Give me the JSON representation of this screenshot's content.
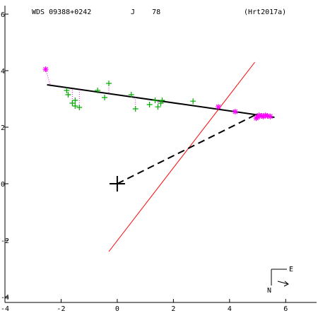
{
  "header": {
    "left": "WDS 09388+0242",
    "center": "J    78",
    "right": "(Hrt2017a)"
  },
  "chart_data": {
    "type": "scatter",
    "xlim": [
      -4,
      7.1
    ],
    "ylim": [
      -4.2,
      6.3
    ],
    "x_ticks": [
      -4,
      -2,
      0,
      2,
      4,
      6
    ],
    "y_ticks": [
      -4,
      -2,
      0,
      2,
      4,
      6
    ],
    "grid": false,
    "colors": {
      "axes": "#000000",
      "green_points": "#00aa00",
      "magenta_points": "#ff00ff",
      "red_line": "#ff0000",
      "fit_line": "#000000",
      "dashed_line": "#000000"
    },
    "series": [
      {
        "marker": "plus",
        "color": "#00aa00",
        "points": [
          [
            -1.8,
            3.3
          ],
          [
            -1.75,
            3.15
          ],
          [
            -1.6,
            2.85
          ],
          [
            -1.5,
            2.95
          ],
          [
            -1.5,
            2.75
          ],
          [
            -1.35,
            2.7
          ],
          [
            -0.7,
            3.3
          ],
          [
            -0.45,
            3.05
          ],
          [
            -0.3,
            3.55
          ],
          [
            0.5,
            3.15
          ],
          [
            0.65,
            2.65
          ],
          [
            1.15,
            2.8
          ],
          [
            1.35,
            2.95
          ],
          [
            1.45,
            2.72
          ],
          [
            1.55,
            2.85
          ],
          [
            1.6,
            2.95
          ],
          [
            2.7,
            2.92
          ]
        ]
      },
      {
        "marker": "asterisk",
        "color": "#ff00ff",
        "points": [
          [
            -2.55,
            4.05
          ],
          [
            3.6,
            2.72
          ],
          [
            4.2,
            2.55
          ],
          [
            4.95,
            2.32
          ],
          [
            5.0,
            2.36
          ],
          [
            5.05,
            2.42
          ],
          [
            5.15,
            2.4
          ],
          [
            5.2,
            2.38
          ],
          [
            5.28,
            2.42
          ],
          [
            5.35,
            2.4
          ],
          [
            5.45,
            2.38
          ]
        ]
      }
    ],
    "lines": {
      "fit": [
        [
          -2.5,
          3.5
        ],
        [
          5.6,
          2.35
        ]
      ],
      "red": [
        [
          -0.3,
          -2.4
        ],
        [
          4.9,
          4.3
        ]
      ],
      "dashed": [
        [
          0.0,
          0.0
        ],
        [
          4.95,
          2.45
        ]
      ],
      "dotted_residuals": [
        [
          [
            -2.55,
            4.05
          ],
          [
            -2.38,
            3.48
          ]
        ],
        [
          [
            -1.8,
            3.3
          ],
          [
            -1.8,
            3.4
          ]
        ],
        [
          [
            -1.6,
            2.85
          ],
          [
            -1.6,
            3.37
          ]
        ],
        [
          [
            -1.35,
            2.7
          ],
          [
            -1.35,
            3.34
          ]
        ],
        [
          [
            -0.3,
            3.55
          ],
          [
            -0.3,
            3.2
          ]
        ],
        [
          [
            0.65,
            2.65
          ],
          [
            0.65,
            3.05
          ]
        ],
        [
          [
            1.45,
            2.72
          ],
          [
            1.45,
            2.94
          ]
        ],
        [
          [
            4.2,
            2.55
          ],
          [
            4.2,
            2.55
          ]
        ]
      ]
    },
    "origin_marker": [
      0,
      0
    ],
    "compass": {
      "east_label": "E",
      "north_label": "N"
    }
  }
}
